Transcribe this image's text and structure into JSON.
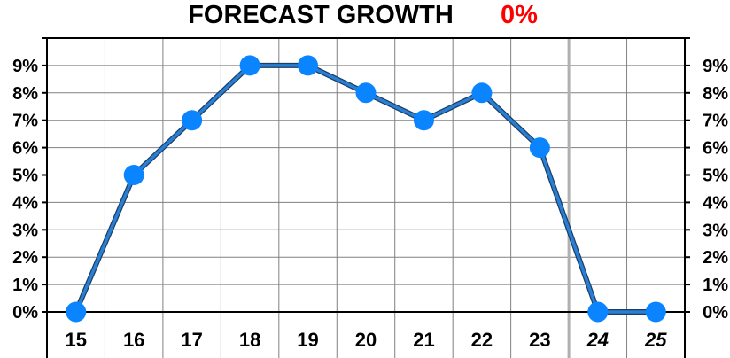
{
  "chart_data": {
    "type": "line",
    "title": "FORECAST GROWTH",
    "title_value": "0%",
    "title_value_color": "#ff0000",
    "categories": [
      "15",
      "16",
      "17",
      "18",
      "19",
      "20",
      "21",
      "22",
      "23",
      "24",
      "25"
    ],
    "forecast_categories": [
      "24",
      "25"
    ],
    "series": [
      {
        "values": [
          0,
          5,
          7,
          9,
          9,
          8,
          7,
          8,
          6,
          0,
          0
        ],
        "color": "#0a84ff",
        "line_color": "#2a7fd4"
      }
    ],
    "y_ticks": [
      "0%",
      "1%",
      "2%",
      "3%",
      "4%",
      "5%",
      "6%",
      "7%",
      "8%",
      "9%"
    ],
    "ylim": [
      0,
      10
    ],
    "y_axis_left": true,
    "y_axis_right": true,
    "grid": true,
    "grid_color": "#808080",
    "forecast_divider_color": "#b0b0b0"
  }
}
